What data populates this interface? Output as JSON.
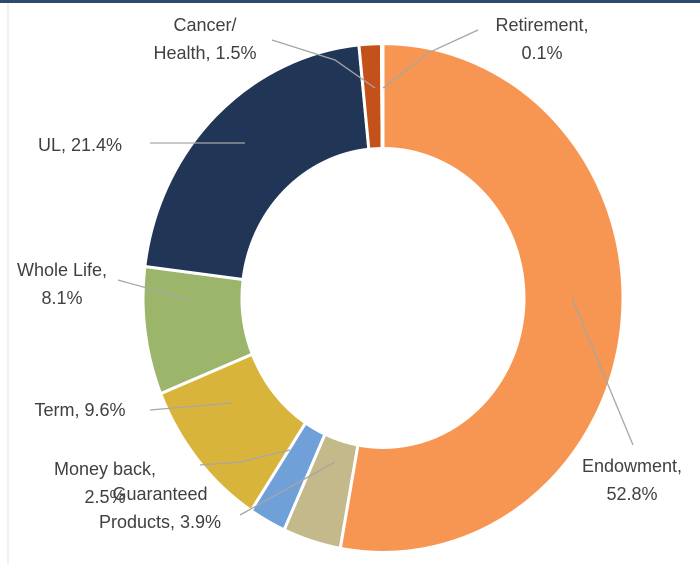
{
  "chart_data": {
    "type": "donut",
    "categories": [
      "Endowment,",
      "Guaranteed\nProducts,",
      "Money back,",
      "Term,",
      "Whole Life,",
      "UL,",
      "Cancer/\nHealth,",
      "Retirement,"
    ],
    "values": [
      52.8,
      3.9,
      2.5,
      9.6,
      8.1,
      21.4,
      1.5,
      0.1
    ],
    "value_labels": [
      "52.8%",
      "3.9%",
      "2.5%",
      "9.6%",
      "8.1%",
      "21.4%",
      "1.5%",
      "0.1%"
    ],
    "colors": [
      "#f79552",
      "#c4b98a",
      "#6fa0d8",
      "#d9b43a",
      "#9bb56a",
      "#213657",
      "#c4501a",
      "#8c8c8c"
    ]
  }
}
